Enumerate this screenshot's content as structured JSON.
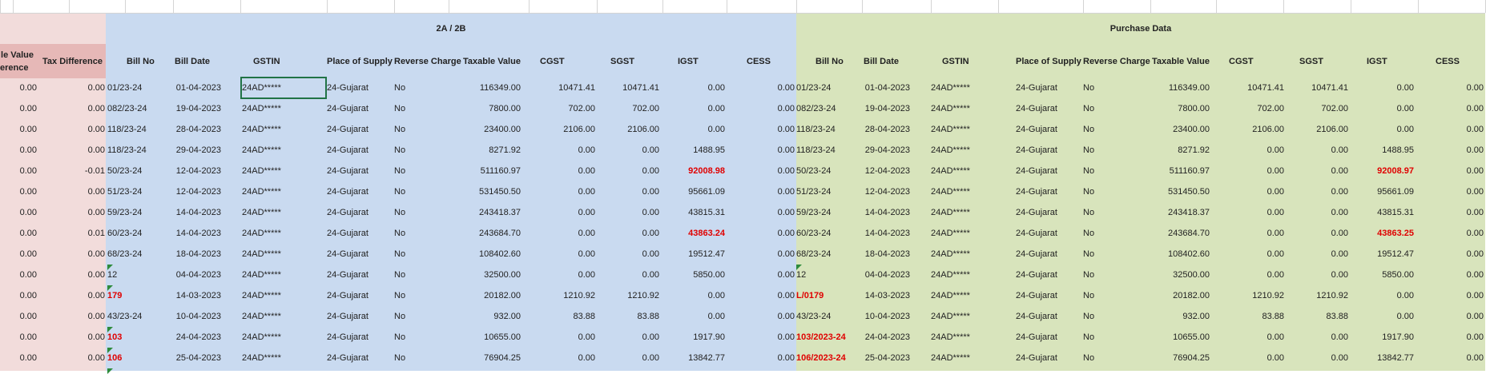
{
  "headers": {
    "diff_col1_line1": "le Value",
    "diff_col1_line2": "erence",
    "diff_col2": "Tax Difference",
    "group_2a2b": "2A / 2B",
    "group_purchase": "Purchase Data",
    "columns": [
      "Bill No",
      "Bill Date",
      "GSTIN",
      "Place of Supply",
      "Reverse Charge",
      "Taxable Value",
      "CGST",
      "SGST",
      "IGST",
      "CESS"
    ]
  },
  "rows": [
    {
      "vd": "0.00",
      "td": "0.00",
      "a": {
        "bill": "01/23-24",
        "date": "01-04-2023",
        "gstin": "24AD*****",
        "pos": "24-Gujarat",
        "rc": "No",
        "tv": "116349.00",
        "cgst": "10471.41",
        "sgst": "10471.41",
        "igst": "0.00",
        "cess": "0.00"
      },
      "p": {
        "bill": "01/23-24",
        "date": "01-04-2023",
        "gstin": "24AD*****",
        "pos": "24-Gujarat",
        "rc": "No",
        "tv": "116349.00",
        "cgst": "10471.41",
        "sgst": "10471.41",
        "igst": "0.00",
        "cess": "0.00"
      }
    },
    {
      "vd": "0.00",
      "td": "0.00",
      "a": {
        "bill": "082/23-24",
        "date": "19-04-2023",
        "gstin": "24AD*****",
        "pos": "24-Gujarat",
        "rc": "No",
        "tv": "7800.00",
        "cgst": "702.00",
        "sgst": "702.00",
        "igst": "0.00",
        "cess": "0.00"
      },
      "p": {
        "bill": "082/23-24",
        "date": "19-04-2023",
        "gstin": "24AD*****",
        "pos": "24-Gujarat",
        "rc": "No",
        "tv": "7800.00",
        "cgst": "702.00",
        "sgst": "702.00",
        "igst": "0.00",
        "cess": "0.00"
      }
    },
    {
      "vd": "0.00",
      "td": "0.00",
      "a": {
        "bill": "118/23-24",
        "date": "28-04-2023",
        "gstin": "24AD*****",
        "pos": "24-Gujarat",
        "rc": "No",
        "tv": "23400.00",
        "cgst": "2106.00",
        "sgst": "2106.00",
        "igst": "0.00",
        "cess": "0.00"
      },
      "p": {
        "bill": "118/23-24",
        "date": "28-04-2023",
        "gstin": "24AD*****",
        "pos": "24-Gujarat",
        "rc": "No",
        "tv": "23400.00",
        "cgst": "2106.00",
        "sgst": "2106.00",
        "igst": "0.00",
        "cess": "0.00"
      }
    },
    {
      "vd": "0.00",
      "td": "0.00",
      "a": {
        "bill": "118/23-24",
        "date": "29-04-2023",
        "gstin": "24AD*****",
        "pos": "24-Gujarat",
        "rc": "No",
        "tv": "8271.92",
        "cgst": "0.00",
        "sgst": "0.00",
        "igst": "1488.95",
        "cess": "0.00"
      },
      "p": {
        "bill": "118/23-24",
        "date": "29-04-2023",
        "gstin": "24AD*****",
        "pos": "24-Gujarat",
        "rc": "No",
        "tv": "8271.92",
        "cgst": "0.00",
        "sgst": "0.00",
        "igst": "1488.95",
        "cess": "0.00"
      }
    },
    {
      "vd": "0.00",
      "td": "-0.01",
      "a": {
        "bill": "50/23-24",
        "date": "12-04-2023",
        "gstin": "24AD*****",
        "pos": "24-Gujarat",
        "rc": "No",
        "tv": "511160.97",
        "cgst": "0.00",
        "sgst": "0.00",
        "igst": "92008.98",
        "cess": "0.00"
      },
      "p": {
        "bill": "50/23-24",
        "date": "12-04-2023",
        "gstin": "24AD*****",
        "pos": "24-Gujarat",
        "rc": "No",
        "tv": "511160.97",
        "cgst": "0.00",
        "sgst": "0.00",
        "igst": "92008.97",
        "cess": "0.00"
      },
      "red_igst": true
    },
    {
      "vd": "0.00",
      "td": "0.00",
      "a": {
        "bill": "51/23-24",
        "date": "12-04-2023",
        "gstin": "24AD*****",
        "pos": "24-Gujarat",
        "rc": "No",
        "tv": "531450.50",
        "cgst": "0.00",
        "sgst": "0.00",
        "igst": "95661.09",
        "cess": "0.00"
      },
      "p": {
        "bill": "51/23-24",
        "date": "12-04-2023",
        "gstin": "24AD*****",
        "pos": "24-Gujarat",
        "rc": "No",
        "tv": "531450.50",
        "cgst": "0.00",
        "sgst": "0.00",
        "igst": "95661.09",
        "cess": "0.00"
      }
    },
    {
      "vd": "0.00",
      "td": "0.00",
      "a": {
        "bill": "59/23-24",
        "date": "14-04-2023",
        "gstin": "24AD*****",
        "pos": "24-Gujarat",
        "rc": "No",
        "tv": "243418.37",
        "cgst": "0.00",
        "sgst": "0.00",
        "igst": "43815.31",
        "cess": "0.00"
      },
      "p": {
        "bill": "59/23-24",
        "date": "14-04-2023",
        "gstin": "24AD*****",
        "pos": "24-Gujarat",
        "rc": "No",
        "tv": "243418.37",
        "cgst": "0.00",
        "sgst": "0.00",
        "igst": "43815.31",
        "cess": "0.00"
      }
    },
    {
      "vd": "0.00",
      "td": "0.01",
      "a": {
        "bill": "60/23-24",
        "date": "14-04-2023",
        "gstin": "24AD*****",
        "pos": "24-Gujarat",
        "rc": "No",
        "tv": "243684.70",
        "cgst": "0.00",
        "sgst": "0.00",
        "igst": "43863.24",
        "cess": "0.00"
      },
      "p": {
        "bill": "60/23-24",
        "date": "14-04-2023",
        "gstin": "24AD*****",
        "pos": "24-Gujarat",
        "rc": "No",
        "tv": "243684.70",
        "cgst": "0.00",
        "sgst": "0.00",
        "igst": "43863.25",
        "cess": "0.00"
      },
      "red_igst": true
    },
    {
      "vd": "0.00",
      "td": "0.00",
      "a": {
        "bill": "68/23-24",
        "date": "18-04-2023",
        "gstin": "24AD*****",
        "pos": "24-Gujarat",
        "rc": "No",
        "tv": "108402.60",
        "cgst": "0.00",
        "sgst": "0.00",
        "igst": "19512.47",
        "cess": "0.00"
      },
      "p": {
        "bill": "68/23-24",
        "date": "18-04-2023",
        "gstin": "24AD*****",
        "pos": "24-Gujarat",
        "rc": "No",
        "tv": "108402.60",
        "cgst": "0.00",
        "sgst": "0.00",
        "igst": "19512.47",
        "cess": "0.00"
      }
    },
    {
      "vd": "0.00",
      "td": "0.00",
      "a": {
        "bill": "12",
        "date": "04-04-2023",
        "gstin": "24AD*****",
        "pos": "24-Gujarat",
        "rc": "No",
        "tv": "32500.00",
        "cgst": "0.00",
        "sgst": "0.00",
        "igst": "5850.00",
        "cess": "0.00"
      },
      "p": {
        "bill": "12",
        "date": "04-04-2023",
        "gstin": "24AD*****",
        "pos": "24-Gujarat",
        "rc": "No",
        "tv": "32500.00",
        "cgst": "0.00",
        "sgst": "0.00",
        "igst": "5850.00",
        "cess": "0.00"
      },
      "tri_a": true,
      "tri_p": true
    },
    {
      "vd": "0.00",
      "td": "0.00",
      "a": {
        "bill": "179",
        "date": "14-03-2023",
        "gstin": "24AD*****",
        "pos": "24-Gujarat",
        "rc": "No",
        "tv": "20182.00",
        "cgst": "1210.92",
        "sgst": "1210.92",
        "igst": "0.00",
        "cess": "0.00"
      },
      "p": {
        "bill": "L/0179",
        "date": "14-03-2023",
        "gstin": "24AD*****",
        "pos": "24-Gujarat",
        "rc": "No",
        "tv": "20182.00",
        "cgst": "1210.92",
        "sgst": "1210.92",
        "igst": "0.00",
        "cess": "0.00"
      },
      "red_bill": true,
      "tri_a": true
    },
    {
      "vd": "0.00",
      "td": "0.00",
      "a": {
        "bill": "43/23-24",
        "date": "10-04-2023",
        "gstin": "24AD*****",
        "pos": "24-Gujarat",
        "rc": "No",
        "tv": "932.00",
        "cgst": "83.88",
        "sgst": "83.88",
        "igst": "0.00",
        "cess": "0.00"
      },
      "p": {
        "bill": "43/23-24",
        "date": "10-04-2023",
        "gstin": "24AD*****",
        "pos": "24-Gujarat",
        "rc": "No",
        "tv": "932.00",
        "cgst": "83.88",
        "sgst": "83.88",
        "igst": "0.00",
        "cess": "0.00"
      }
    },
    {
      "vd": "0.00",
      "td": "0.00",
      "a": {
        "bill": "103",
        "date": "24-04-2023",
        "gstin": "24AD*****",
        "pos": "24-Gujarat",
        "rc": "No",
        "tv": "10655.00",
        "cgst": "0.00",
        "sgst": "0.00",
        "igst": "1917.90",
        "cess": "0.00"
      },
      "p": {
        "bill": "103/2023-24",
        "date": "24-04-2023",
        "gstin": "24AD*****",
        "pos": "24-Gujarat",
        "rc": "No",
        "tv": "10655.00",
        "cgst": "0.00",
        "sgst": "0.00",
        "igst": "1917.90",
        "cess": "0.00"
      },
      "red_bill": true,
      "tri_a": true
    },
    {
      "vd": "0.00",
      "td": "0.00",
      "a": {
        "bill": "106",
        "date": "25-04-2023",
        "gstin": "24AD*****",
        "pos": "24-Gujarat",
        "rc": "No",
        "tv": "76904.25",
        "cgst": "0.00",
        "sgst": "0.00",
        "igst": "13842.77",
        "cess": "0.00"
      },
      "p": {
        "bill": "106/2023-24",
        "date": "25-04-2023",
        "gstin": "24AD*****",
        "pos": "24-Gujarat",
        "rc": "No",
        "tv": "76904.25",
        "cgst": "0.00",
        "sgst": "0.00",
        "igst": "13842.77",
        "cess": "0.00"
      },
      "red_bill": true,
      "tri_a": true
    }
  ]
}
